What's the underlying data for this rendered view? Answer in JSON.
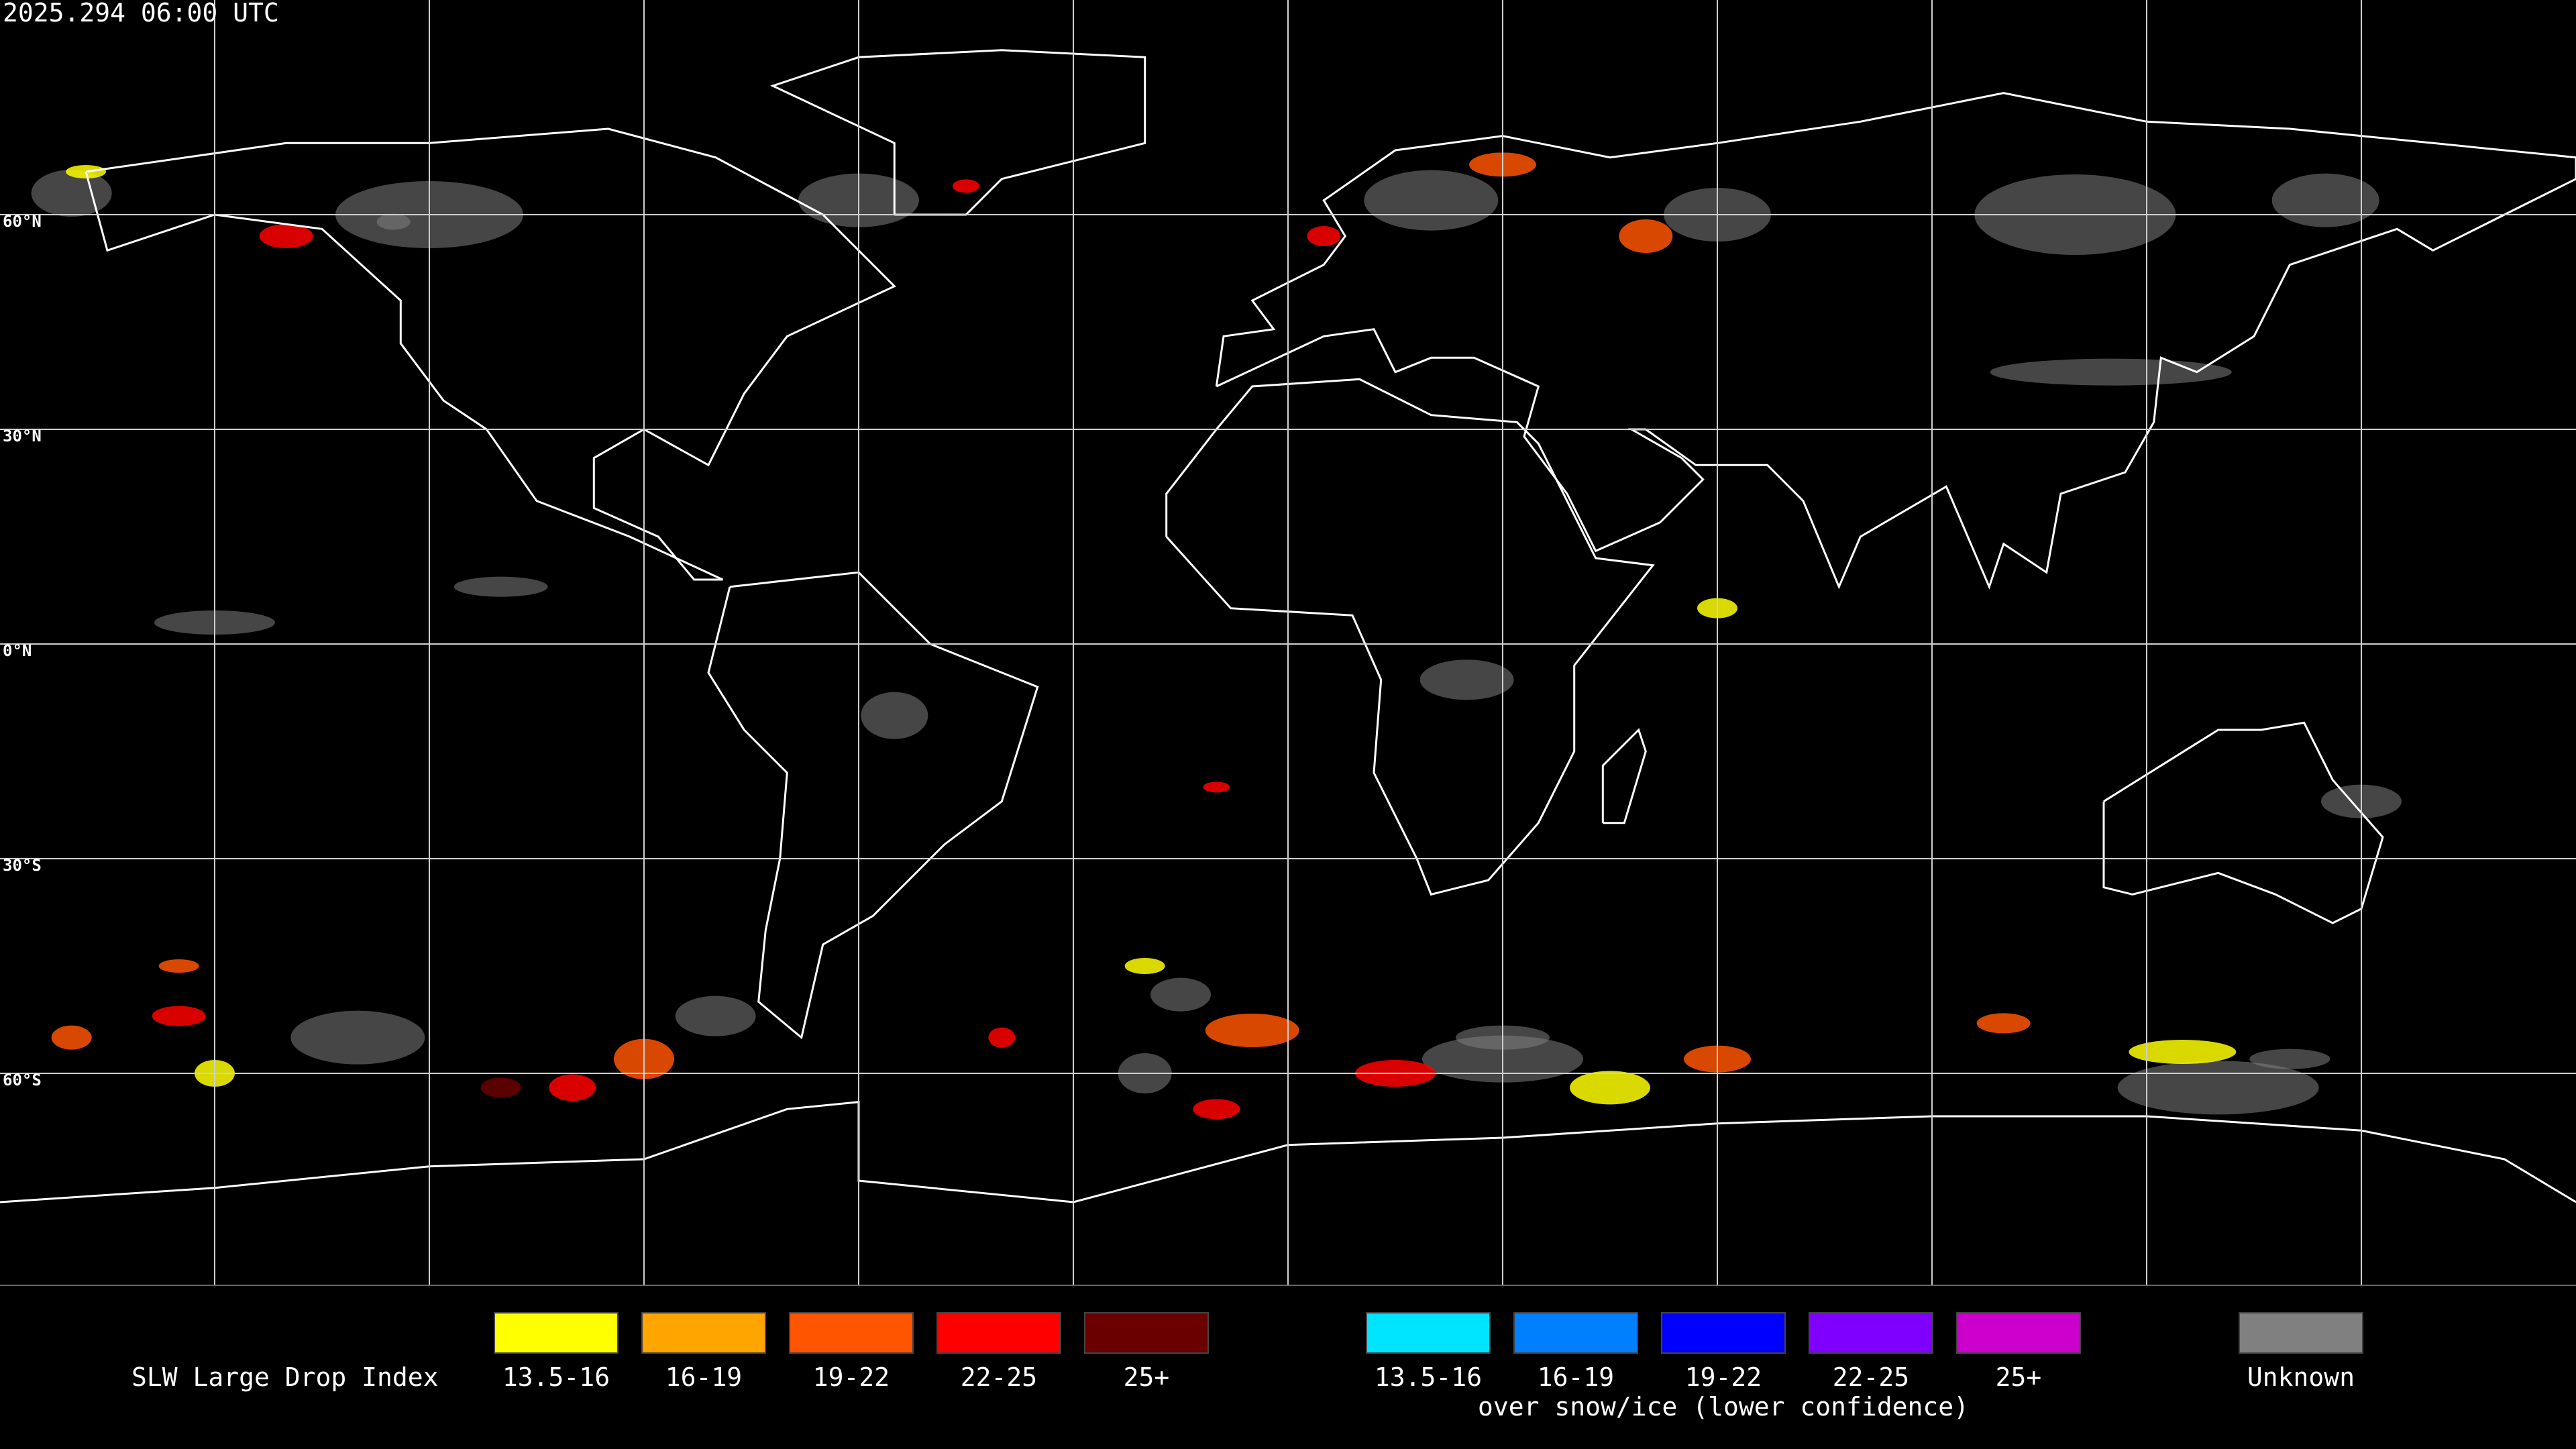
{
  "header": {
    "timestamp": "2025.294 06:00 UTC"
  },
  "map": {
    "latitude_labels": [
      "60°N",
      "30°N",
      "0°N",
      "30°S",
      "60°S"
    ]
  },
  "legend": {
    "title": "SLW Large Drop Index",
    "groups": [
      {
        "items": [
          {
            "label": "13.5-16",
            "color": "#ffff00"
          },
          {
            "label": "16-19",
            "color": "#ffa500"
          },
          {
            "label": "19-22",
            "color": "#ff5500"
          },
          {
            "label": "22-25",
            "color": "#ff0000"
          },
          {
            "label": "25+",
            "color": "#6b0000"
          }
        ]
      },
      {
        "items": [
          {
            "label": "13.5-16",
            "color": "#00e5ff"
          },
          {
            "label": "16-19",
            "color": "#0080ff"
          },
          {
            "label": "19-22",
            "color": "#0000ff"
          },
          {
            "label": "22-25",
            "color": "#7f00ff"
          },
          {
            "label": "25+",
            "color": "#cc00cc"
          }
        ],
        "caption": "over snow/ice (lower confidence)"
      }
    ],
    "unknown": {
      "label": "Unknown",
      "color": "#808080"
    }
  }
}
